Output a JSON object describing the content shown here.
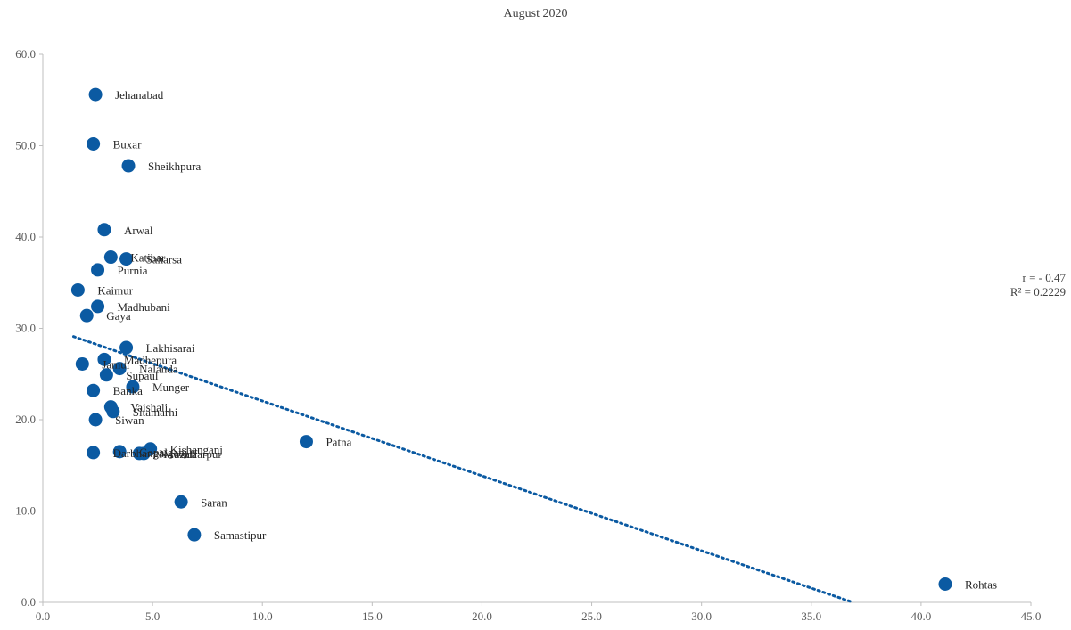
{
  "chart_data": {
    "type": "scatter",
    "title": "August 2020",
    "xlabel": "",
    "ylabel": "",
    "xlim": [
      0,
      45
    ],
    "ylim": [
      0,
      60
    ],
    "x_ticks": [
      "0.0",
      "5.0",
      "10.0",
      "15.0",
      "20.0",
      "25.0",
      "30.0",
      "35.0",
      "40.0",
      "45.0"
    ],
    "y_ticks": [
      "0.0",
      "10.0",
      "20.0",
      "30.0",
      "40.0",
      "50.0",
      "60.0"
    ],
    "grid": false,
    "marker_color": "#0b5aa2",
    "trendline": {
      "type": "linear",
      "style": "dotted",
      "color": "#0b5aa2",
      "points": [
        [
          1.4,
          29.1
        ],
        [
          36.9,
          0.0
        ]
      ]
    },
    "annotations": {
      "r": "r = - 0.47",
      "r2": "R² = 0.2229"
    },
    "points": [
      {
        "label": "Jehanabad",
        "x": 2.4,
        "y": 55.6
      },
      {
        "label": "Buxar",
        "x": 2.3,
        "y": 50.2
      },
      {
        "label": "Sheikhpura",
        "x": 3.9,
        "y": 47.8
      },
      {
        "label": "Arwal",
        "x": 2.8,
        "y": 40.8
      },
      {
        "label": "Katihar",
        "x": 3.1,
        "y": 37.8
      },
      {
        "label": "Saharsa",
        "x": 3.8,
        "y": 37.6
      },
      {
        "label": "Purnia",
        "x": 2.5,
        "y": 36.4
      },
      {
        "label": "Kaimur",
        "x": 1.6,
        "y": 34.2
      },
      {
        "label": "Madhubani",
        "x": 2.5,
        "y": 32.4
      },
      {
        "label": "Gaya",
        "x": 2.0,
        "y": 31.4
      },
      {
        "label": "Lakhisarai",
        "x": 3.8,
        "y": 27.9
      },
      {
        "label": "Madhepura",
        "x": 2.8,
        "y": 26.6
      },
      {
        "label": "Jamui",
        "x": 1.8,
        "y": 26.1
      },
      {
        "label": "Nalanda",
        "x": 3.5,
        "y": 25.6
      },
      {
        "label": "Supaul",
        "x": 2.9,
        "y": 24.9
      },
      {
        "label": "Munger",
        "x": 4.1,
        "y": 23.6
      },
      {
        "label": "Banka",
        "x": 2.3,
        "y": 23.2
      },
      {
        "label": "Vaishali",
        "x": 3.1,
        "y": 21.4
      },
      {
        "label": "Sitamarhi",
        "x": 3.2,
        "y": 20.9
      },
      {
        "label": "Siwan",
        "x": 2.4,
        "y": 20.0
      },
      {
        "label": "Patna",
        "x": 12.0,
        "y": 17.6
      },
      {
        "label": "Kishanganj",
        "x": 4.9,
        "y": 16.8
      },
      {
        "label": "Darbhanga",
        "x": 2.3,
        "y": 16.4
      },
      {
        "label": "Gopalganj",
        "x": 3.5,
        "y": 16.5
      },
      {
        "label": "Nawada",
        "x": 4.4,
        "y": 16.3
      },
      {
        "label": "Muzaffarpur",
        "x": 4.6,
        "y": 16.3
      },
      {
        "label": "Saran",
        "x": 6.3,
        "y": 11.0
      },
      {
        "label": "Samastipur",
        "x": 6.9,
        "y": 7.4
      },
      {
        "label": "Rohtas",
        "x": 41.1,
        "y": 2.0
      }
    ]
  }
}
